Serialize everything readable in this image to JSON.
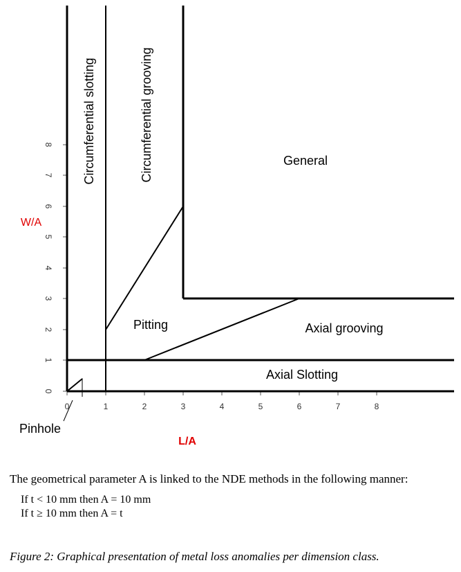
{
  "diagram": {
    "axes": {
      "x_label": "L/A",
      "y_label": "W/A",
      "label_color": "#e00000",
      "x_ticks": [
        "0",
        "1",
        "2",
        "3",
        "4",
        "5",
        "6",
        "7",
        "8"
      ],
      "y_ticks": [
        "0",
        "1",
        "2",
        "3",
        "4",
        "5",
        "6",
        "7",
        "8"
      ]
    },
    "regions": {
      "circumferential_slotting": "Circumferential slotting",
      "circumferential_grooving": "Circumferential grooving",
      "general": "General",
      "pitting": "Pitting",
      "axial_grooving": "Axial grooving",
      "axial_slotting": "Axial Slotting",
      "pinhole": "Pinhole"
    }
  },
  "text": {
    "intro": "The geometrical parameter A is linked to the NDE methods in the following manner:",
    "rule1": "If t < 10 mm then A = 10 mm",
    "rule2": "If t ≥ 10 mm then A = t"
  },
  "caption": "Figure 2: Graphical presentation of metal loss anomalies  per dimension class."
}
